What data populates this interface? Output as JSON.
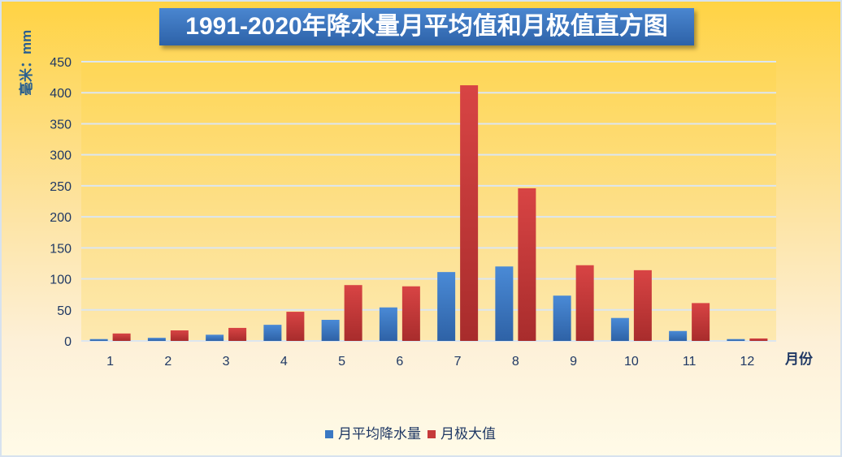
{
  "chart_data": {
    "type": "bar",
    "title": "1991-2020年降水量月平均值和月极值直方图",
    "ylabel": "毫米：mm",
    "xlabel": "月份",
    "categories": [
      "1",
      "2",
      "3",
      "4",
      "5",
      "6",
      "7",
      "8",
      "9",
      "10",
      "11",
      "12"
    ],
    "yticks": [
      "0",
      "50",
      "100",
      "150",
      "200",
      "250",
      "300",
      "350",
      "400",
      "450"
    ],
    "ylim": [
      0,
      450
    ],
    "grid": true,
    "legend_position": "bottom",
    "series": [
      {
        "name": "月平均降水量",
        "color": "#3a78c3",
        "values": [
          3,
          5,
          10,
          26,
          34,
          54,
          111,
          120,
          73,
          37,
          16,
          3
        ]
      },
      {
        "name": "月极大值",
        "color": "#c63a3a",
        "values": [
          12,
          17,
          21,
          47,
          90,
          88,
          412,
          246,
          122,
          114,
          61,
          4
        ]
      }
    ]
  }
}
